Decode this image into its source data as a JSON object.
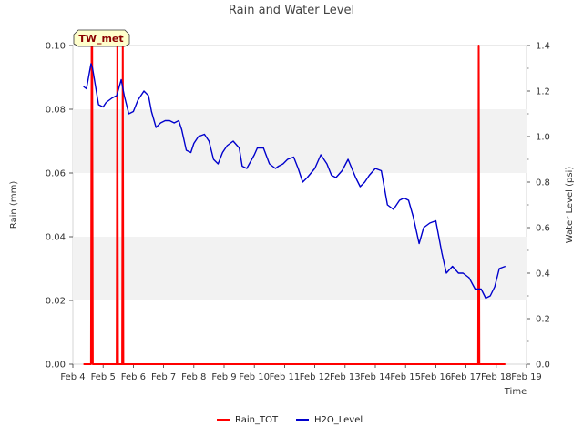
{
  "chart_data": {
    "type": "line",
    "title": "Rain and Water Level",
    "xlabel": "Time",
    "ylabel": "Rain (mm)",
    "y2label": "Water Level (psi)",
    "badge": "TW_met",
    "x_tick_labels": [
      "Feb 4",
      "Feb 5",
      "Feb 6",
      "Feb 7",
      "Feb 8",
      "Feb 9",
      "Feb 10",
      "Feb 11",
      "Feb 12",
      "Feb 13",
      "Feb 14",
      "Feb 15",
      "Feb 16",
      "Feb 17",
      "Feb 18",
      "Feb 19"
    ],
    "xlim": [
      4,
      19
    ],
    "ylim": [
      0,
      0.1
    ],
    "y2lim": [
      0,
      1.4
    ],
    "y_tick_labels": [
      "0.00",
      "0.02",
      "0.04",
      "0.06",
      "0.08",
      "0.10"
    ],
    "y2_tick_labels": [
      "0.0",
      "0.2",
      "0.4",
      "0.6",
      "0.8",
      "1.0",
      "1.2",
      "1.4"
    ],
    "grid": "shaded horizontal bands",
    "legend_position": "bottom-center",
    "series": [
      {
        "name": "Rain_TOT",
        "axis": "left",
        "color": "#ff0000",
        "x": [
          4.35,
          4.6,
          4.62,
          4.64,
          4.66,
          5.45,
          5.47,
          5.49,
          5.63,
          5.65,
          5.67,
          17.4,
          17.42,
          17.44,
          18.3
        ],
        "values": [
          0,
          0,
          0.1,
          0.1,
          0,
          0,
          0.1,
          0,
          0,
          0.1,
          0,
          0,
          0.1,
          0,
          0
        ]
      },
      {
        "name": "H2O_Level",
        "axis": "right",
        "color": "#0000cc",
        "x": [
          4.35,
          4.45,
          4.6,
          4.65,
          4.75,
          4.85,
          5.0,
          5.1,
          5.3,
          5.45,
          5.6,
          5.7,
          5.85,
          6.0,
          6.15,
          6.35,
          6.5,
          6.6,
          6.75,
          6.9,
          7.05,
          7.2,
          7.35,
          7.5,
          7.6,
          7.75,
          7.9,
          8.0,
          8.15,
          8.35,
          8.5,
          8.65,
          8.8,
          8.95,
          9.1,
          9.3,
          9.5,
          9.6,
          9.75,
          10.0,
          10.1,
          10.3,
          10.5,
          10.7,
          10.8,
          10.95,
          11.1,
          11.3,
          11.45,
          11.6,
          11.75,
          12.0,
          12.2,
          12.4,
          12.55,
          12.7,
          12.9,
          13.1,
          13.35,
          13.5,
          13.65,
          13.8,
          14.0,
          14.2,
          14.4,
          14.6,
          14.8,
          14.95,
          15.1,
          15.25,
          15.45,
          15.6,
          15.8,
          16.0,
          16.2,
          16.35,
          16.55,
          16.75,
          16.9,
          17.0,
          17.1,
          17.3,
          17.5,
          17.65,
          17.8,
          17.95,
          18.1,
          18.3
        ],
        "values": [
          1.22,
          1.21,
          1.32,
          1.3,
          1.22,
          1.14,
          1.13,
          1.15,
          1.17,
          1.18,
          1.25,
          1.18,
          1.1,
          1.11,
          1.16,
          1.2,
          1.18,
          1.11,
          1.04,
          1.06,
          1.07,
          1.07,
          1.06,
          1.07,
          1.03,
          0.94,
          0.93,
          0.97,
          1.0,
          1.01,
          0.98,
          0.9,
          0.88,
          0.93,
          0.96,
          0.98,
          0.95,
          0.87,
          0.86,
          0.92,
          0.95,
          0.95,
          0.88,
          0.86,
          0.87,
          0.88,
          0.9,
          0.91,
          0.86,
          0.8,
          0.82,
          0.86,
          0.92,
          0.88,
          0.83,
          0.82,
          0.85,
          0.9,
          0.82,
          0.78,
          0.8,
          0.83,
          0.86,
          0.85,
          0.7,
          0.68,
          0.72,
          0.73,
          0.72,
          0.65,
          0.53,
          0.6,
          0.62,
          0.63,
          0.49,
          0.4,
          0.43,
          0.4,
          0.4,
          0.39,
          0.38,
          0.33,
          0.33,
          0.29,
          0.3,
          0.34,
          0.42,
          0.43
        ]
      }
    ]
  }
}
